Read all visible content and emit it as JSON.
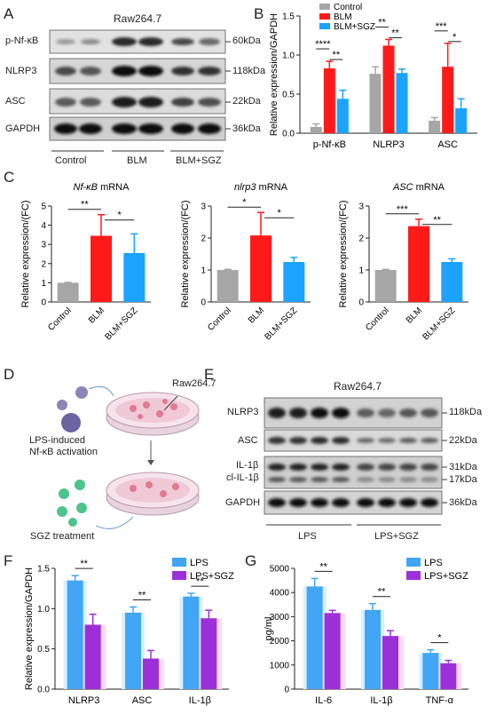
{
  "colors": {
    "gray": "#a6a6a6",
    "red": "#ff1a1a",
    "blue": "#1ba3ff",
    "purple": "#9b30d9",
    "lightblue": "#42a5f5"
  },
  "panelA": {
    "letter": "A",
    "cell_line": "Raw264.7",
    "rows": [
      {
        "name": "p-Nf-κB",
        "mw": "60kDa"
      },
      {
        "name": "NLRP3",
        "mw": "118kDa"
      },
      {
        "name": "ASC",
        "mw": "22kDa"
      },
      {
        "name": "GAPDH",
        "mw": "36kDa"
      }
    ],
    "groups": [
      "Control",
      "BLM",
      "BLM+SGZ"
    ]
  },
  "panelB": {
    "letter": "B",
    "chart_data": {
      "type": "bar",
      "ylabel": "Relative expression/GAPDH",
      "ylim": [
        0,
        1.5
      ],
      "yticks": [
        "0.0",
        "0.5",
        "1.0",
        "1.5"
      ],
      "categories": [
        "p-Nf-κB",
        "NLRP3",
        "ASC"
      ],
      "series": [
        {
          "name": "Control",
          "values": [
            0.08,
            0.76,
            0.16
          ],
          "err": [
            0.04,
            0.09,
            0.04
          ]
        },
        {
          "name": "BLM",
          "values": [
            0.83,
            1.12,
            0.85
          ],
          "err": [
            0.09,
            0.08,
            0.3
          ]
        },
        {
          "name": "BLM+SGZ",
          "values": [
            0.44,
            0.77,
            0.32
          ],
          "err": [
            0.11,
            0.05,
            0.12
          ]
        }
      ],
      "sig": [
        [
          "****",
          "**"
        ],
        [
          "**",
          "**"
        ],
        [
          "***",
          "*"
        ]
      ]
    }
  },
  "panelC": {
    "letter": "C",
    "chart_data": [
      {
        "type": "bar",
        "title": "Nf-κB",
        "title_suffix": " mRNA",
        "ylabel": "Relative expression/(FC)",
        "ylim": [
          0,
          5
        ],
        "yticks": [
          "0",
          "1",
          "2",
          "3",
          "4",
          "5"
        ],
        "categories": [
          "Control",
          "BLM",
          "BLM+SGZ"
        ],
        "values": [
          1.0,
          3.45,
          2.55
        ],
        "err": [
          0.02,
          1.1,
          1.0
        ],
        "sig": [
          "**",
          "*"
        ]
      },
      {
        "type": "bar",
        "title": "nlrp3",
        "title_suffix": " mRNA",
        "ylabel": "Relative expression/(FC)",
        "ylim": [
          0,
          3
        ],
        "yticks": [
          "0",
          "1",
          "2",
          "3"
        ],
        "categories": [
          "Control",
          "BLM",
          "BLM+SGZ"
        ],
        "values": [
          1.0,
          2.08,
          1.25
        ],
        "err": [
          0.02,
          0.72,
          0.14
        ],
        "sig": [
          "*",
          "*"
        ]
      },
      {
        "type": "bar",
        "title": "ASC",
        "title_suffix": " mRNA",
        "ylabel": "Relative expression/(FC)",
        "ylim": [
          0,
          3
        ],
        "yticks": [
          "0",
          "1",
          "2",
          "3"
        ],
        "categories": [
          "Control",
          "BLM",
          "BLM+SGZ"
        ],
        "values": [
          1.0,
          2.37,
          1.25
        ],
        "err": [
          0.02,
          0.22,
          0.1
        ],
        "sig": [
          "***",
          "**"
        ]
      }
    ]
  },
  "panelD": {
    "letter": "D",
    "dish_label": "Raw264.7",
    "step1": "LPS-induced",
    "step1b": "Nf-κB activation",
    "step2": "SGZ treatment"
  },
  "panelE": {
    "letter": "E",
    "cell_line": "Raw264.7",
    "rows": [
      {
        "name": "NLRP3",
        "mw": "118kDa"
      },
      {
        "name": "ASC",
        "mw": "22kDa"
      },
      {
        "name": "IL-1β",
        "mw": "31kDa"
      },
      {
        "name": "cl-IL-1β",
        "mw": "17kDa"
      },
      {
        "name": "GAPDH",
        "mw": "36kDa"
      }
    ],
    "groups": [
      "LPS",
      "LPS+SGZ"
    ]
  },
  "panelF": {
    "letter": "F",
    "chart_data": {
      "type": "bar",
      "ylabel": "Relative expression/GAPDH",
      "ylim": [
        0,
        1.5
      ],
      "yticks": [
        "0.0",
        "0.5",
        "1.0",
        "1.5"
      ],
      "categories": [
        "NLRP3",
        "ASC",
        "IL-1β"
      ],
      "series": [
        {
          "name": "LPS",
          "values": [
            1.35,
            0.95,
            1.15
          ],
          "err": [
            0.06,
            0.07,
            0.04
          ]
        },
        {
          "name": "LPS+SGZ",
          "values": [
            0.8,
            0.38,
            0.88
          ],
          "err": [
            0.13,
            0.1,
            0.1
          ]
        }
      ],
      "sig": [
        "**",
        "**",
        "**"
      ]
    }
  },
  "panelG": {
    "letter": "G",
    "chart_data": {
      "type": "bar",
      "ylabel": "pg/ml",
      "ylim": [
        0,
        5000
      ],
      "yticks": [
        "0",
        "1000",
        "2000",
        "3000",
        "4000",
        "5000"
      ],
      "categories": [
        "IL-6",
        "IL-1β",
        "TNF-α"
      ],
      "series": [
        {
          "name": "LPS",
          "values": [
            4250,
            3280,
            1500
          ],
          "err": [
            330,
            260,
            130
          ]
        },
        {
          "name": "LPS+SGZ",
          "values": [
            3150,
            2200,
            1070
          ],
          "err": [
            110,
            220,
            120
          ]
        }
      ],
      "sig": [
        "**",
        "**",
        "*"
      ]
    }
  }
}
